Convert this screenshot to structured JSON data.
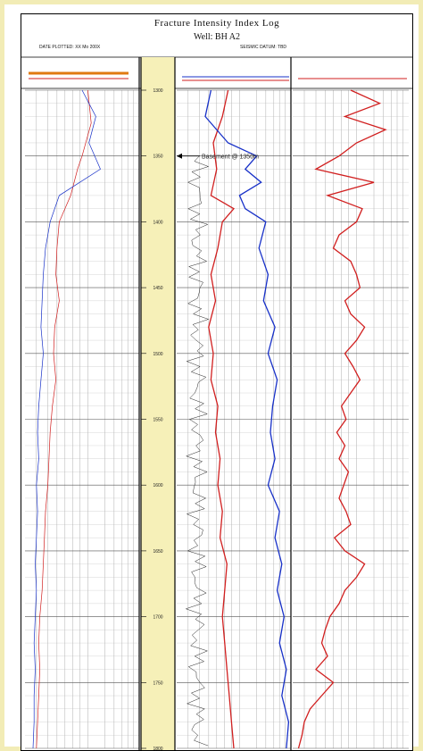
{
  "header": {
    "title": "Fracture Intensity Index Log",
    "well": "Well: BH A2",
    "date_plotted": "DATE PLOTTED: XX Mo 200X",
    "right_note": "SEISMIC DATUM: TBD"
  },
  "callout": "Basement @ 1350m",
  "colors": {
    "frame": "#f2ecb6",
    "depth_track": "#f6f0b8",
    "series_red": "#d11f1f",
    "series_blue": "#1730c8",
    "grid": "#9a9a9a"
  },
  "chart_data": {
    "type": "line",
    "depth_axis": {
      "ticks": [
        1300,
        1350,
        1400,
        1450,
        1500,
        1550,
        1600,
        1650,
        1700,
        1750,
        1800
      ],
      "range": [
        1300,
        1800
      ]
    },
    "tracks": [
      {
        "name": "track-1",
        "series": [
          {
            "color": "red",
            "values": [
              [
                1300,
                0.55
              ],
              [
                1325,
                0.58
              ],
              [
                1350,
                0.5
              ],
              [
                1360,
                0.46
              ],
              [
                1380,
                0.4
              ],
              [
                1400,
                0.3
              ],
              [
                1420,
                0.28
              ],
              [
                1440,
                0.27
              ],
              [
                1460,
                0.3
              ],
              [
                1480,
                0.26
              ],
              [
                1500,
                0.25
              ],
              [
                1520,
                0.27
              ],
              [
                1540,
                0.24
              ],
              [
                1560,
                0.22
              ],
              [
                1580,
                0.21
              ],
              [
                1600,
                0.2
              ],
              [
                1620,
                0.18
              ],
              [
                1640,
                0.17
              ],
              [
                1660,
                0.16
              ],
              [
                1680,
                0.15
              ],
              [
                1700,
                0.13
              ],
              [
                1720,
                0.12
              ],
              [
                1740,
                0.13
              ],
              [
                1760,
                0.12
              ],
              [
                1780,
                0.11
              ],
              [
                1800,
                0.1
              ]
            ]
          },
          {
            "color": "blue",
            "values": [
              [
                1300,
                0.5
              ],
              [
                1320,
                0.62
              ],
              [
                1340,
                0.56
              ],
              [
                1360,
                0.66
              ],
              [
                1380,
                0.3
              ],
              [
                1400,
                0.22
              ],
              [
                1420,
                0.18
              ],
              [
                1440,
                0.16
              ],
              [
                1460,
                0.15
              ],
              [
                1480,
                0.14
              ],
              [
                1500,
                0.16
              ],
              [
                1520,
                0.14
              ],
              [
                1540,
                0.12
              ],
              [
                1560,
                0.11
              ],
              [
                1580,
                0.12
              ],
              [
                1600,
                0.1
              ],
              [
                1620,
                0.11
              ],
              [
                1640,
                0.1
              ],
              [
                1660,
                0.09
              ],
              [
                1680,
                0.1
              ],
              [
                1700,
                0.09
              ],
              [
                1720,
                0.08
              ],
              [
                1740,
                0.09
              ],
              [
                1760,
                0.08
              ],
              [
                1780,
                0.08
              ],
              [
                1800,
                0.07
              ]
            ]
          }
        ]
      },
      {
        "name": "track-3",
        "series": [
          {
            "color": "red",
            "values": [
              [
                1300,
                0.45
              ],
              [
                1320,
                0.4
              ],
              [
                1340,
                0.32
              ],
              [
                1360,
                0.35
              ],
              [
                1380,
                0.3
              ],
              [
                1390,
                0.5
              ],
              [
                1400,
                0.4
              ],
              [
                1420,
                0.36
              ],
              [
                1440,
                0.3
              ],
              [
                1460,
                0.34
              ],
              [
                1480,
                0.28
              ],
              [
                1500,
                0.32
              ],
              [
                1520,
                0.3
              ],
              [
                1540,
                0.36
              ],
              [
                1560,
                0.34
              ],
              [
                1580,
                0.38
              ],
              [
                1600,
                0.36
              ],
              [
                1620,
                0.4
              ],
              [
                1640,
                0.38
              ],
              [
                1660,
                0.44
              ],
              [
                1680,
                0.42
              ],
              [
                1700,
                0.4
              ],
              [
                1720,
                0.42
              ],
              [
                1740,
                0.44
              ],
              [
                1760,
                0.46
              ],
              [
                1780,
                0.48
              ],
              [
                1800,
                0.5
              ]
            ]
          },
          {
            "color": "blue",
            "values": [
              [
                1300,
                0.3
              ],
              [
                1320,
                0.25
              ],
              [
                1340,
                0.45
              ],
              [
                1350,
                0.7
              ],
              [
                1360,
                0.6
              ],
              [
                1370,
                0.74
              ],
              [
                1380,
                0.55
              ],
              [
                1390,
                0.6
              ],
              [
                1400,
                0.78
              ],
              [
                1420,
                0.72
              ],
              [
                1440,
                0.8
              ],
              [
                1460,
                0.76
              ],
              [
                1480,
                0.86
              ],
              [
                1500,
                0.8
              ],
              [
                1520,
                0.88
              ],
              [
                1540,
                0.84
              ],
              [
                1560,
                0.82
              ],
              [
                1580,
                0.86
              ],
              [
                1600,
                0.8
              ],
              [
                1620,
                0.9
              ],
              [
                1640,
                0.86
              ],
              [
                1660,
                0.92
              ],
              [
                1680,
                0.88
              ],
              [
                1700,
                0.94
              ],
              [
                1720,
                0.9
              ],
              [
                1740,
                0.96
              ],
              [
                1760,
                0.92
              ],
              [
                1780,
                0.98
              ],
              [
                1800,
                0.96
              ]
            ]
          }
        ]
      },
      {
        "name": "track-4",
        "series": [
          {
            "color": "red",
            "values": [
              [
                1300,
                0.5
              ],
              [
                1310,
                0.75
              ],
              [
                1320,
                0.45
              ],
              [
                1330,
                0.8
              ],
              [
                1340,
                0.55
              ],
              [
                1350,
                0.4
              ],
              [
                1360,
                0.2
              ],
              [
                1370,
                0.7
              ],
              [
                1380,
                0.3
              ],
              [
                1390,
                0.6
              ],
              [
                1400,
                0.55
              ],
              [
                1410,
                0.4
              ],
              [
                1420,
                0.35
              ],
              [
                1430,
                0.5
              ],
              [
                1440,
                0.55
              ],
              [
                1450,
                0.58
              ],
              [
                1460,
                0.45
              ],
              [
                1470,
                0.5
              ],
              [
                1480,
                0.62
              ],
              [
                1490,
                0.55
              ],
              [
                1500,
                0.45
              ],
              [
                1510,
                0.52
              ],
              [
                1520,
                0.58
              ],
              [
                1530,
                0.5
              ],
              [
                1540,
                0.42
              ],
              [
                1550,
                0.46
              ],
              [
                1560,
                0.38
              ],
              [
                1570,
                0.45
              ],
              [
                1580,
                0.4
              ],
              [
                1590,
                0.48
              ],
              [
                1600,
                0.44
              ],
              [
                1610,
                0.4
              ],
              [
                1620,
                0.46
              ],
              [
                1630,
                0.5
              ],
              [
                1640,
                0.36
              ],
              [
                1650,
                0.45
              ],
              [
                1660,
                0.62
              ],
              [
                1670,
                0.55
              ],
              [
                1680,
                0.45
              ],
              [
                1690,
                0.4
              ],
              [
                1700,
                0.32
              ],
              [
                1710,
                0.28
              ],
              [
                1720,
                0.25
              ],
              [
                1730,
                0.3
              ],
              [
                1740,
                0.2
              ],
              [
                1750,
                0.35
              ],
              [
                1760,
                0.25
              ],
              [
                1770,
                0.15
              ],
              [
                1780,
                0.1
              ],
              [
                1790,
                0.08
              ],
              [
                1800,
                0.05
              ]
            ]
          }
        ]
      }
    ]
  }
}
